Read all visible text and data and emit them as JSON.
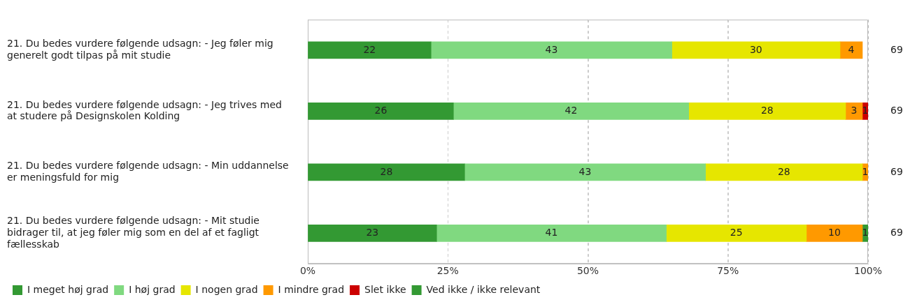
{
  "chart_data": {
    "type": "bar",
    "orientation": "horizontal",
    "stacked": true,
    "data_labels": true,
    "grid": "x",
    "legend": "bottom",
    "categories": [
      "21. Du bedes vurdere følgende udsagn: - Jeg føler mig generelt godt tilpas på mit studie",
      "21. Du bedes vurdere følgende udsagn: - Jeg trives med at studere på Designskolen Kolding",
      "21. Du bedes vurdere følgende udsagn: - Min uddannelse er meningsfuld for mig",
      "21. Du bedes vurdere følgende udsagn: - Mit studie bidrager til, at jeg føler mig som en del af et fagligt fællesskab"
    ],
    "xlim": [
      0,
      100
    ],
    "xticks": [
      {
        "value": 0,
        "label": "0%"
      },
      {
        "value": 25,
        "label": "25%"
      },
      {
        "value": 50,
        "label": "50%"
      },
      {
        "value": 75,
        "label": "75%"
      },
      {
        "value": 100,
        "label": "100%"
      }
    ],
    "series": [
      {
        "name": "I meget høj grad",
        "color": "#339933",
        "values": [
          22,
          26,
          28,
          23
        ]
      },
      {
        "name": "I høj grad",
        "color": "#80d980",
        "values": [
          43,
          42,
          43,
          41
        ]
      },
      {
        "name": "I nogen grad",
        "color": "#e6e600",
        "values": [
          30,
          28,
          28,
          25
        ]
      },
      {
        "name": "I mindre grad",
        "color": "#ff9900",
        "values": [
          4,
          3,
          1,
          10
        ]
      },
      {
        "name": "Slet ikke",
        "color": "#cc0000",
        "values": [
          null,
          1,
          null,
          null
        ]
      },
      {
        "name": "Ved ikke / ikke relevant",
        "color": "#339933",
        "values": [
          null,
          null,
          null,
          1
        ]
      }
    ],
    "annotations": [
      "69",
      "69",
      "69",
      "69"
    ]
  }
}
